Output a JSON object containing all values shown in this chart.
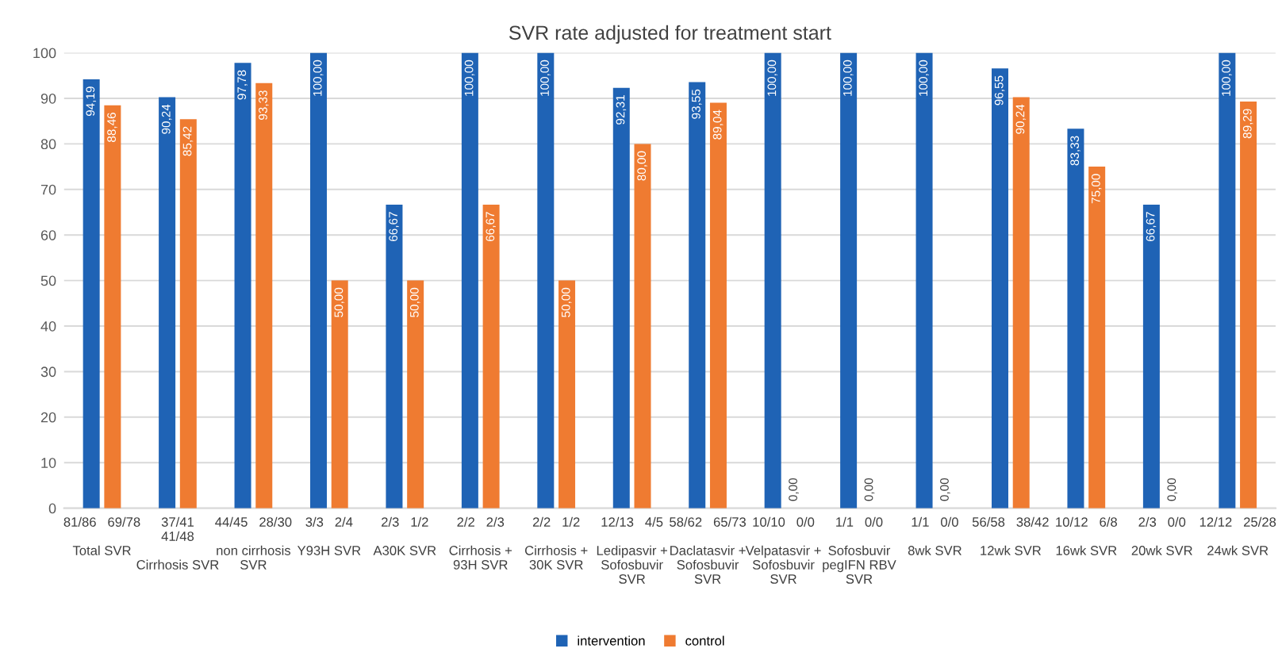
{
  "chart_data": {
    "type": "bar",
    "title": "SVR rate adjusted for treatment start",
    "categories": [
      "81/86   69/78\n\nTotal SVR",
      "37/41\n41/48\n\nCirrhosis SVR",
      "44/45   28/30\n\nnon cirrhosis\nSVR",
      "3/3   2/4\n\nY93H SVR",
      "2/3   1/2\n\nA30K SVR",
      "2/2   2/3\n\nCirrhosis +\n93H SVR",
      "2/2   1/2\n\nCirrhosis +\n30K SVR",
      "12/13   4/5\n\nLedipasvir +\nSofosbuvir\nSVR",
      "58/62   65/73\n\nDaclatasvir +\nSofosbuvir\nSVR",
      "10/10   0/0\n\nVelpatasvir +\nSofosbuvir\nSVR",
      "1/1   0/0\n\nSofosbuvir\npegIFN RBV\nSVR",
      "1/1   0/0\n\n8wk SVR",
      "56/58   38/42\n\n12wk SVR",
      "10/12   6/8\n\n16wk SVR",
      "2/3   0/0\n\n20wk SVR",
      "12/12   25/28\n\n24wk SVR"
    ],
    "series": [
      {
        "name": "intervention",
        "color": "#1f63b5",
        "values": [
          94.19,
          90.24,
          97.78,
          100,
          66.67,
          100,
          100,
          92.31,
          93.55,
          100,
          100,
          100,
          96.55,
          83.33,
          66.67,
          100
        ],
        "value_labels": [
          "94,19",
          "90,24",
          "97,78",
          "100,00",
          "66,67",
          "100,00",
          "100,00",
          "92,31",
          "93,55",
          "100,00",
          "100,00",
          "100,00",
          "96,55",
          "83,33",
          "66,67",
          "100,00"
        ]
      },
      {
        "name": "control",
        "color": "#ef7b31",
        "values": [
          88.46,
          85.42,
          93.33,
          50,
          50,
          66.67,
          50,
          80,
          89.04,
          0,
          0,
          0,
          90.24,
          75,
          0,
          89.29
        ],
        "value_labels": [
          "88,46",
          "85,42",
          "93,33",
          "50,00",
          "50,00",
          "66,67",
          "50,00",
          "80,00",
          "89,04",
          "0,00",
          "0,00",
          "0,00",
          "90,24",
          "75,00",
          "0,00",
          "89,29"
        ]
      }
    ],
    "ylim": [
      0,
      100
    ],
    "yticks": [
      0,
      10,
      20,
      30,
      40,
      50,
      60,
      70,
      80,
      90,
      100
    ],
    "grid": "y",
    "legend": "bottom"
  }
}
